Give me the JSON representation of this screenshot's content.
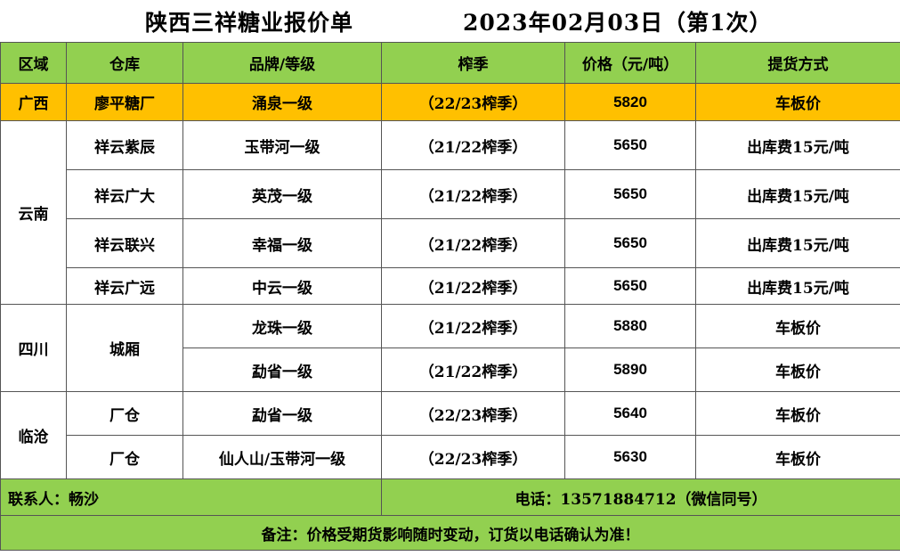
{
  "title": {
    "main": "陕西三祥糖业报价单",
    "date": "2023年02月03日（第1次）"
  },
  "headers": [
    "区域",
    "仓库",
    "品牌/等级",
    "榨季",
    "价格（元/吨）",
    "提货方式"
  ],
  "rows": [
    {
      "region": "广西",
      "warehouse": "廖平糖厂",
      "brand": "涌泉一级",
      "season": "（22/23榨季）",
      "price": "5820",
      "delivery": "车板价"
    },
    {
      "region": "云南",
      "warehouse": "祥云紫辰",
      "brand": "玉带河一级",
      "season": "（21/22榨季）",
      "price": "5650",
      "delivery": "出库费15元/吨"
    },
    {
      "region": "",
      "warehouse": "祥云广大",
      "brand": "英茂一级",
      "season": "（21/22榨季）",
      "price": "5650",
      "delivery": "出库费15元/吨"
    },
    {
      "region": "",
      "warehouse": "祥云联兴",
      "brand": "幸福一级",
      "season": "（21/22榨季）",
      "price": "5650",
      "delivery": "出库费15元/吨"
    },
    {
      "region": "",
      "warehouse": "祥云广远",
      "brand": "中云一级",
      "season": "（21/22榨季）",
      "price": "5650",
      "delivery": "出库费15元/吨"
    },
    {
      "region": "四川",
      "warehouse": "城厢",
      "brand": "龙珠一级",
      "season": "（21/22榨季）",
      "price": "5880",
      "delivery": "车板价"
    },
    {
      "region": "",
      "warehouse": "",
      "brand": "勐省一级",
      "season": "（21/22榨季）",
      "price": "5890",
      "delivery": "车板价"
    },
    {
      "region": "临沧",
      "warehouse": "厂仓",
      "brand": "勐省一级",
      "season": "（22/23榨季）",
      "price": "5640",
      "delivery": "车板价"
    },
    {
      "region": "",
      "warehouse": "厂仓",
      "brand": "仙人山/玉带河一级",
      "season": "（22/23榨季）",
      "price": "5630",
      "delivery": "车板价"
    }
  ],
  "contact": {
    "person": "联系人：畅沙",
    "phone": "电话：13571884712（微信同号）"
  },
  "note": "备注：价格受期货影响随时变动，订货以电话确认为准！",
  "colors": {
    "header_green": "#92d050",
    "highlight_orange": "#ffc000"
  }
}
